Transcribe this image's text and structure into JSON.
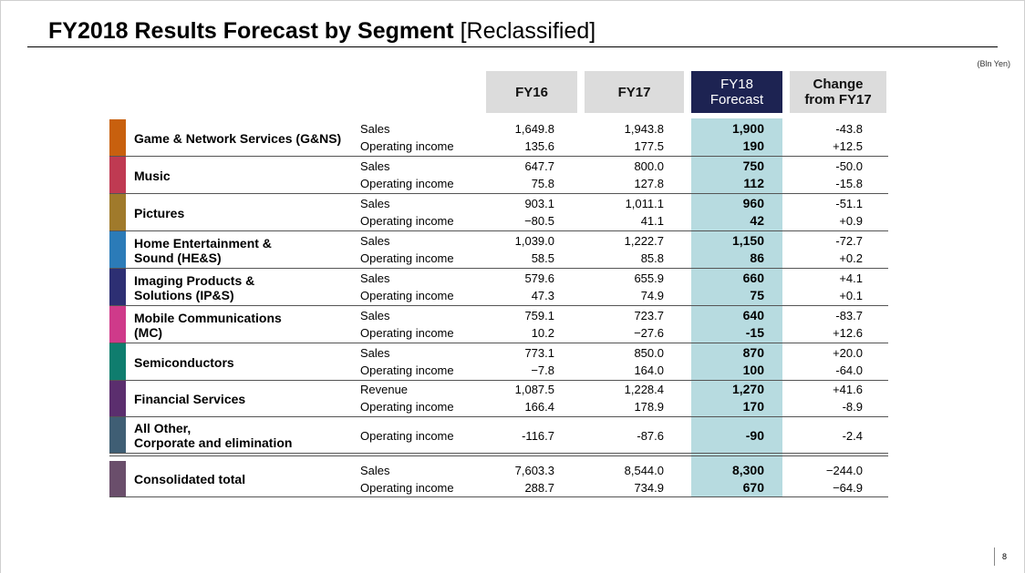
{
  "title": {
    "bold": "FY2018 Results Forecast by Segment",
    "rest": " [Reclassified]"
  },
  "unit": "(Bln Yen)",
  "headers": {
    "fy16": "FY16",
    "fy17": "FY17",
    "fy18_line1": "FY18",
    "fy18_line2": "Forecast",
    "change_line1": "Change",
    "change_line2": "from FY17"
  },
  "segment_colors": {
    "gns": "#c8600e",
    "music": "#bf3a52",
    "pictures": "#a07a2b",
    "hes": "#2b7bb8",
    "ips": "#2d2f73",
    "mc": "#cf3a8a",
    "semi": "#0f7d6e",
    "fin": "#5b2e6e",
    "other": "#3f5e74",
    "total": "#6a4e6b"
  },
  "segments": [
    {
      "name": "Game & Network Services (G&NS)",
      "lines": [
        {
          "label": "Sales",
          "fy16": "1,649.8",
          "fy17": "1,943.8",
          "fy18": "1,900",
          "change": "-43.8"
        },
        {
          "label": "Operating income",
          "fy16": "135.6",
          "fy17": "177.5",
          "fy18": "190",
          "change": "+12.5"
        }
      ]
    },
    {
      "name": "Music",
      "lines": [
        {
          "label": "Sales",
          "fy16": "647.7",
          "fy17": "800.0",
          "fy18": "750",
          "change": "-50.0"
        },
        {
          "label": "Operating income",
          "fy16": "75.8",
          "fy17": "127.8",
          "fy18": "112",
          "change": "-15.8"
        }
      ]
    },
    {
      "name": "Pictures",
      "lines": [
        {
          "label": "Sales",
          "fy16": "903.1",
          "fy17": "1,011.1",
          "fy18": "960",
          "change": "-51.1"
        },
        {
          "label": "Operating income",
          "fy16": "−80.5",
          "fy17": "41.1",
          "fy18": "42",
          "change": "+0.9"
        }
      ]
    },
    {
      "name1": "Home Entertainment &",
      "name2": "Sound (HE&S)",
      "lines": [
        {
          "label": "Sales",
          "fy16": "1,039.0",
          "fy17": "1,222.7",
          "fy18": "1,150",
          "change": "-72.7"
        },
        {
          "label": "Operating income",
          "fy16": "58.5",
          "fy17": "85.8",
          "fy18": "86",
          "change": "+0.2"
        }
      ]
    },
    {
      "name1": "Imaging Products &",
      "name2": "Solutions (IP&S)",
      "lines": [
        {
          "label": "Sales",
          "fy16": "579.6",
          "fy17": "655.9",
          "fy18": "660",
          "change": "+4.1"
        },
        {
          "label": "Operating income",
          "fy16": "47.3",
          "fy17": "74.9",
          "fy18": "75",
          "change": "+0.1"
        }
      ]
    },
    {
      "name1": "Mobile Communications",
      "name2": "(MC)",
      "lines": [
        {
          "label": "Sales",
          "fy16": "759.1",
          "fy17": "723.7",
          "fy18": "640",
          "change": "-83.7"
        },
        {
          "label": "Operating income",
          "fy16": "10.2",
          "fy17": "−27.6",
          "fy18": "-15",
          "change": "+12.6"
        }
      ]
    },
    {
      "name": "Semiconductors",
      "lines": [
        {
          "label": "Sales",
          "fy16": "773.1",
          "fy17": "850.0",
          "fy18": "870",
          "change": "+20.0"
        },
        {
          "label": "Operating income",
          "fy16": "−7.8",
          "fy17": "164.0",
          "fy18": "100",
          "change": "-64.0"
        }
      ]
    },
    {
      "name": "Financial Services",
      "lines": [
        {
          "label": "Revenue",
          "fy16": "1,087.5",
          "fy17": "1,228.4",
          "fy18": "1,270",
          "change": "+41.6"
        },
        {
          "label": "Operating income",
          "fy16": "166.4",
          "fy17": "178.9",
          "fy18": "170",
          "change": "-8.9"
        }
      ]
    },
    {
      "name1": "All Other,",
      "name2": "Corporate and elimination",
      "lines": [
        {
          "label": "Operating income",
          "fy16": "-116.7",
          "fy17": "-87.6",
          "fy18": "-90",
          "change": "-2.4"
        }
      ]
    }
  ],
  "total": {
    "name": "Consolidated total",
    "lines": [
      {
        "label": "Sales",
        "fy16": "7,603.3",
        "fy17": "8,544.0",
        "fy18": "8,300",
        "change": "−244.0"
      },
      {
        "label": "Operating income",
        "fy16": "288.7",
        "fy17": "734.9",
        "fy18": "670",
        "change": "−64.9"
      }
    ]
  },
  "page_number": "8"
}
